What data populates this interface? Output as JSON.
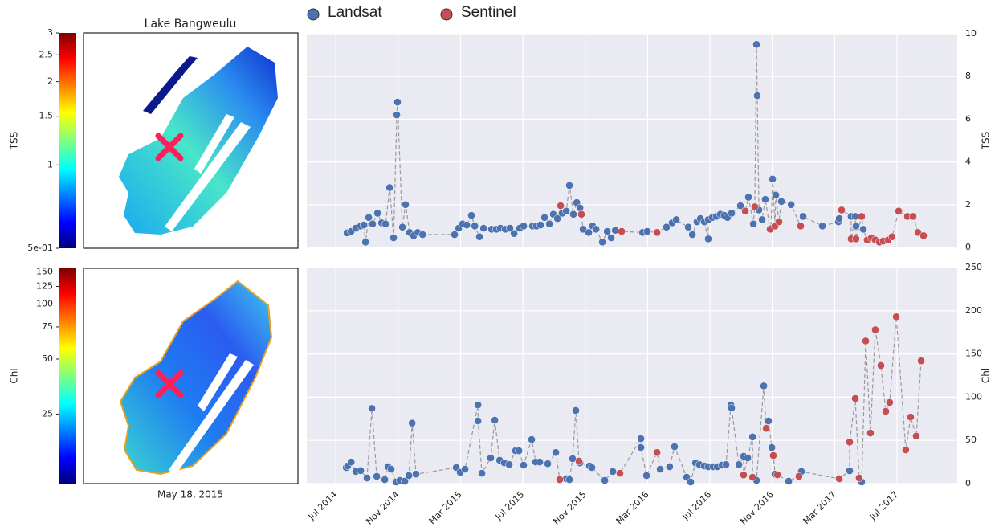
{
  "map": {
    "title": "Lake Bangweulu",
    "date": "May 18, 2015"
  },
  "chart_data": [
    {
      "type": "colorbar",
      "ylabel": "TSS",
      "log_scale": true,
      "ylim": [
        0.5,
        3
      ],
      "yticks": [
        3,
        2.5,
        2,
        1.5,
        1,
        {
          "value": 0.5,
          "label": "5e-01"
        }
      ]
    },
    {
      "type": "scatter",
      "ylabel": "TSS",
      "grid": true,
      "ylim": [
        0,
        10
      ],
      "yticks": [
        0,
        2,
        4,
        6,
        8,
        10
      ],
      "xlim": [
        2014.345,
        2017.822
      ],
      "xticks": [
        2014.5,
        2014.833,
        2015.167,
        2015.5,
        2015.833,
        2016.167,
        2016.5,
        2016.833,
        2017.167,
        2017.5
      ],
      "series": [
        {
          "name": "Landsat",
          "color": "#4c72b0",
          "x": [
            2014.56,
            2014.582,
            2014.607,
            2014.633,
            2014.65,
            2014.659,
            2014.676,
            2014.697,
            2014.723,
            2014.745,
            2014.766,
            2014.788,
            2014.809,
            2014.826,
            2014.83,
            2014.856,
            2014.873,
            2014.895,
            2014.916,
            2014.938,
            2014.964,
            2015.135,
            2015.157,
            2015.178,
            2015.2,
            2015.225,
            2015.243,
            2015.268,
            2015.29,
            2015.333,
            2015.358,
            2015.38,
            2015.406,
            2015.431,
            2015.453,
            2015.483,
            2015.504,
            2015.552,
            2015.573,
            2015.594,
            2015.616,
            2015.642,
            2015.663,
            2015.685,
            2015.71,
            2015.732,
            2015.749,
            2015.77,
            2015.788,
            2015.805,
            2015.822,
            2015.852,
            2015.873,
            2015.891,
            2015.925,
            2015.951,
            2015.972,
            2015.994,
            2016.14,
            2016.165,
            2016.268,
            2016.298,
            2016.32,
            2016.384,
            2016.406,
            2016.431,
            2016.449,
            2016.47,
            2016.491,
            2016.491,
            2016.513,
            2016.534,
            2016.556,
            2016.577,
            2016.594,
            2016.616,
            2016.663,
            2016.706,
            2016.732,
            2016.749,
            2016.753,
            2016.762,
            2016.779,
            2016.796,
            2016.826,
            2016.835,
            2016.852,
            2016.882,
            2016.934,
            2016.998,
            2017.101,
            2017.187,
            2017.191,
            2017.255,
            2017.277,
            2017.281,
            2017.32
          ],
          "values": [
            0.68,
            0.75,
            0.9,
            1.0,
            1.05,
            0.25,
            1.4,
            1.1,
            1.6,
            1.15,
            1.1,
            2.8,
            0.45,
            6.2,
            6.8,
            0.95,
            2.0,
            0.7,
            0.55,
            0.7,
            0.6,
            0.6,
            0.9,
            1.1,
            1.05,
            1.5,
            1.0,
            0.5,
            0.9,
            0.85,
            0.85,
            0.9,
            0.85,
            0.9,
            0.65,
            0.9,
            1.0,
            1.0,
            1.0,
            1.05,
            1.4,
            1.1,
            1.55,
            1.35,
            1.6,
            1.7,
            2.9,
            1.55,
            2.1,
            1.85,
            0.85,
            0.7,
            1.0,
            0.85,
            0.25,
            0.75,
            0.45,
            0.8,
            0.7,
            0.75,
            0.95,
            1.15,
            1.3,
            0.95,
            0.6,
            1.2,
            1.35,
            1.2,
            0.4,
            1.3,
            1.4,
            1.45,
            1.55,
            1.5,
            1.4,
            1.6,
            1.95,
            2.35,
            1.1,
            9.5,
            7.1,
            1.75,
            1.3,
            2.25,
            0.9,
            3.2,
            2.45,
            2.15,
            2.0,
            1.45,
            1.0,
            1.2,
            1.35,
            1.45,
            1.45,
            1.0,
            0.85
          ]
        },
        {
          "name": "Sentinel",
          "color": "#c44e52",
          "x": [
            2015.702,
            2015.813,
            2016.028,
            2016.217,
            2016.689,
            2016.74,
            2016.822,
            2016.848,
            2016.869,
            2016.985,
            2017.204,
            2017.255,
            2017.281,
            2017.311,
            2017.341,
            2017.363,
            2017.384,
            2017.406,
            2017.427,
            2017.453,
            2017.474,
            2017.509,
            2017.556,
            2017.586,
            2017.612,
            2017.642
          ],
          "values": [
            1.95,
            1.55,
            0.75,
            0.7,
            1.7,
            1.9,
            0.85,
            1.0,
            1.2,
            1.0,
            1.75,
            0.4,
            0.4,
            1.45,
            0.35,
            0.45,
            0.35,
            0.25,
            0.3,
            0.35,
            0.5,
            1.7,
            1.45,
            1.45,
            0.7,
            0.55
          ]
        }
      ]
    },
    {
      "type": "colorbar",
      "ylabel": "Chl",
      "log_scale": true,
      "ylim": [
        10.4,
        157
      ],
      "yticks": [
        150,
        125,
        100,
        75,
        50,
        25
      ]
    },
    {
      "type": "scatter",
      "ylabel": "Chl",
      "grid": true,
      "ylim": [
        0,
        250
      ],
      "yticks": [
        0,
        50,
        100,
        150,
        200,
        250
      ],
      "xlim": [
        2014.345,
        2017.822
      ],
      "xticks": [
        {
          "value": 2014.5,
          "label": "Jul 2014"
        },
        {
          "value": 2014.833,
          "label": "Nov 2014"
        },
        {
          "value": 2015.167,
          "label": "Mar 2015"
        },
        {
          "value": 2015.5,
          "label": "Jul 2015"
        },
        {
          "value": 2015.833,
          "label": "Nov 2015"
        },
        {
          "value": 2016.167,
          "label": "Mar 2016"
        },
        {
          "value": 2016.5,
          "label": "Jul 2016"
        },
        {
          "value": 2016.833,
          "label": "Nov 2016"
        },
        {
          "value": 2017.167,
          "label": "Mar 2017"
        },
        {
          "value": 2017.5,
          "label": "Jul 2017"
        }
      ],
      "series": [
        {
          "color": "#4c72b0",
          "x": [
            2014.556,
            2014.564,
            2014.582,
            2014.607,
            2014.633,
            2014.667,
            2014.693,
            2014.719,
            2014.762,
            2014.779,
            2014.796,
            2014.822,
            2014.843,
            2014.869,
            2014.891,
            2014.908,
            2014.929,
            2015.144,
            2015.165,
            2015.191,
            2015.26,
            2015.26,
            2015.281,
            2015.328,
            2015.35,
            2015.376,
            2015.401,
            2015.427,
            2015.461,
            2015.479,
            2015.504,
            2015.547,
            2015.569,
            2015.59,
            2015.633,
            2015.676,
            2015.732,
            2015.749,
            2015.766,
            2015.783,
            2015.805,
            2015.856,
            2015.869,
            2015.938,
            2015.981,
            2016.131,
            2016.131,
            2016.161,
            2016.234,
            2016.285,
            2016.311,
            2016.376,
            2016.397,
            2016.423,
            2016.444,
            2016.47,
            2016.491,
            2016.517,
            2016.539,
            2016.564,
            2016.586,
            2016.612,
            2016.616,
            2016.655,
            2016.68,
            2016.702,
            2016.728,
            2016.749,
            2016.788,
            2016.813,
            2016.831,
            2016.848,
            2016.921,
            2016.989,
            2017.247,
            2017.311
          ],
          "values": [
            18.6,
            20.5,
            25,
            14,
            15,
            6.5,
            87,
            8.4,
            4.6,
            19.5,
            16.7,
            1.9,
            3.7,
            2.8,
            9.3,
            70,
            11,
            18.6,
            13,
            16.7,
            91,
            72.5,
            12,
            29.7,
            73.4,
            27,
            24,
            22,
            38,
            38,
            21.4,
            51,
            25,
            25,
            23,
            36,
            5.6,
            4.6,
            28.8,
            84.6,
            24,
            20.4,
            18.6,
            3.7,
            14,
            52,
            41.8,
            9.3,
            16.7,
            19.5,
            42.7,
            7.4,
            1.9,
            24,
            22,
            20.4,
            19.5,
            19.5,
            19.5,
            21.4,
            22,
            91,
            87.4,
            22,
            31.6,
            29.7,
            54,
            3.7,
            113,
            72.5,
            41.8,
            11,
            2.8,
            14,
            14.9,
            1.9
          ]
        },
        {
          "color": "#c44e52",
          "x": [
            2015.697,
            2015.8,
            2016.019,
            2016.217,
            2016.68,
            2016.728,
            2016.801,
            2016.839,
            2016.861,
            2016.976,
            2017.191,
            2017.247,
            2017.277,
            2017.298,
            2017.333,
            2017.358,
            2017.384,
            2017.414,
            2017.44,
            2017.461,
            2017.496,
            2017.547,
            2017.573,
            2017.603,
            2017.629
          ],
          "values": [
            4.6,
            26,
            12,
            36,
            10,
            7.4,
            64,
            32.5,
            10.2,
            8.4,
            5.6,
            48,
            98.5,
            6.5,
            165,
            58.5,
            178,
            136.6,
            83.6,
            93.9,
            193,
            39,
            77,
            55,
            142
          ]
        }
      ]
    }
  ]
}
